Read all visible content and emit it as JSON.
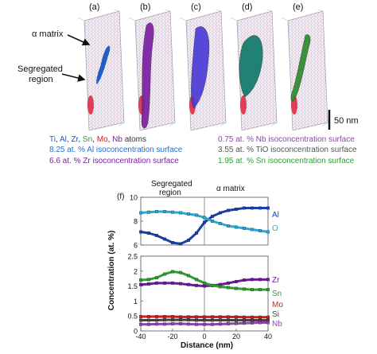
{
  "panels": [
    {
      "label": "(a)",
      "fill": "none"
    },
    {
      "label": "(b)",
      "fill": "#7b1fa2"
    },
    {
      "label": "(c)",
      "fill": "#4b3bd6"
    },
    {
      "label": "(d)",
      "fill": "#0f7a6a"
    },
    {
      "label": "(e)",
      "fill": "#2e8b2e"
    }
  ],
  "annotations": {
    "alpha_matrix": "α matrix",
    "segregated_line1": "Segregated",
    "segregated_line2": "region"
  },
  "scale_bar": "50 nm",
  "legend": {
    "atoms": [
      {
        "text": "Ti",
        "color": "#1f5fc4"
      },
      {
        "text": ", ",
        "color": "#333333"
      },
      {
        "text": "Al",
        "color": "#1f5fc4"
      },
      {
        "text": ", ",
        "color": "#333333"
      },
      {
        "text": "Zr",
        "color": "#2255aa"
      },
      {
        "text": ", ",
        "color": "#333333"
      },
      {
        "text": "Sn",
        "color": "#2e9e2e"
      },
      {
        "text": ", ",
        "color": "#333333"
      },
      {
        "text": "Mo",
        "color": "#d11b1b"
      },
      {
        "text": ", ",
        "color": "#333333"
      },
      {
        "text": "Nb",
        "color": "#7b1fa2"
      },
      {
        "text": " atoms",
        "color": "#333333"
      }
    ],
    "left": [
      {
        "text": "8.25 at. % Al isoconcentration surface",
        "color": "#1f6fd1"
      },
      {
        "text": "6.6 at. % Zr isoconcentration surface",
        "color": "#7b1fa2"
      }
    ],
    "right": [
      {
        "text": "0.75 at. % Nb isoconcentration surface",
        "color": "#8e44ad"
      },
      {
        "text": "3.55 at. % TiO isoconcentration surface",
        "color": "#555555"
      },
      {
        "text": "1.95 at. % Sn isoconcentration surface",
        "color": "#2e9e2e"
      }
    ]
  },
  "chart_data": {
    "type": "line",
    "panel_label": "(f)",
    "region_labels": {
      "left_line1": "Segregated",
      "left_line2": "region",
      "right": "α matrix"
    },
    "xlabel": "Distance (nm)",
    "ylabel": "Concentration (at. %)",
    "xlim": [
      -40,
      40
    ],
    "xticks": [
      "-40",
      "-20",
      "0",
      "20",
      "40"
    ],
    "top": {
      "ylim": [
        6,
        10
      ],
      "yticks": [
        "6",
        "8",
        "10"
      ],
      "series": [
        {
          "name": "Al",
          "color": "#1a3fa8",
          "x": [
            -40,
            -35,
            -30,
            -25,
            -20,
            -15,
            -10,
            -5,
            0,
            5,
            10,
            15,
            20,
            25,
            30,
            35,
            40
          ],
          "y": [
            7.1,
            7.0,
            6.8,
            6.5,
            6.2,
            6.1,
            6.4,
            7.0,
            7.9,
            8.4,
            8.7,
            8.9,
            9.0,
            9.1,
            9.1,
            9.1,
            9.1
          ]
        },
        {
          "name": "O",
          "color": "#2aa7d8",
          "x": [
            -40,
            -35,
            -30,
            -25,
            -20,
            -15,
            -10,
            -5,
            0,
            5,
            10,
            15,
            20,
            25,
            30,
            35,
            40
          ],
          "y": [
            8.7,
            8.75,
            8.8,
            8.8,
            8.75,
            8.7,
            8.6,
            8.5,
            8.3,
            8.0,
            7.8,
            7.6,
            7.5,
            7.4,
            7.3,
            7.2,
            7.1
          ]
        }
      ]
    },
    "bottom": {
      "ylim": [
        0,
        2.5
      ],
      "yticks": [
        "0",
        "0.5",
        "1",
        "1.5",
        "2",
        "2.5"
      ],
      "series": [
        {
          "name": "Zr",
          "color": "#6a1b9a",
          "x": [
            -40,
            -35,
            -30,
            -25,
            -20,
            -15,
            -10,
            -5,
            0,
            5,
            10,
            15,
            20,
            25,
            30,
            35,
            40
          ],
          "y": [
            1.55,
            1.57,
            1.6,
            1.6,
            1.6,
            1.58,
            1.55,
            1.52,
            1.5,
            1.52,
            1.55,
            1.6,
            1.65,
            1.7,
            1.72,
            1.72,
            1.72
          ]
        },
        {
          "name": "Sn",
          "color": "#2e9e2e",
          "x": [
            -40,
            -35,
            -30,
            -25,
            -20,
            -15,
            -10,
            -5,
            0,
            5,
            10,
            15,
            20,
            25,
            30,
            35,
            40
          ],
          "y": [
            1.7,
            1.72,
            1.78,
            1.9,
            1.98,
            1.95,
            1.85,
            1.72,
            1.6,
            1.52,
            1.48,
            1.45,
            1.42,
            1.4,
            1.38,
            1.38,
            1.38
          ]
        },
        {
          "name": "Mo",
          "color": "#d11b1b",
          "x": [
            -40,
            -35,
            -30,
            -25,
            -20,
            -15,
            -10,
            -5,
            0,
            5,
            10,
            15,
            20,
            25,
            30,
            35,
            40
          ],
          "y": [
            0.48,
            0.48,
            0.48,
            0.48,
            0.48,
            0.47,
            0.47,
            0.47,
            0.47,
            0.47,
            0.47,
            0.47,
            0.47,
            0.46,
            0.46,
            0.46,
            0.46
          ]
        },
        {
          "name": "Si",
          "color": "#444444",
          "x": [
            -40,
            -35,
            -30,
            -25,
            -20,
            -15,
            -10,
            -5,
            0,
            5,
            10,
            15,
            20,
            25,
            30,
            35,
            40
          ],
          "y": [
            0.36,
            0.36,
            0.36,
            0.37,
            0.37,
            0.37,
            0.37,
            0.36,
            0.36,
            0.36,
            0.36,
            0.36,
            0.36,
            0.36,
            0.36,
            0.36,
            0.36
          ]
        },
        {
          "name": "Nb",
          "color": "#8e44ad",
          "x": [
            -40,
            -35,
            -30,
            -25,
            -20,
            -15,
            -10,
            -5,
            0,
            5,
            10,
            15,
            20,
            25,
            30,
            35,
            40
          ],
          "y": [
            0.22,
            0.22,
            0.23,
            0.23,
            0.24,
            0.24,
            0.23,
            0.22,
            0.22,
            0.22,
            0.23,
            0.24,
            0.25,
            0.26,
            0.27,
            0.28,
            0.28
          ]
        }
      ]
    }
  }
}
